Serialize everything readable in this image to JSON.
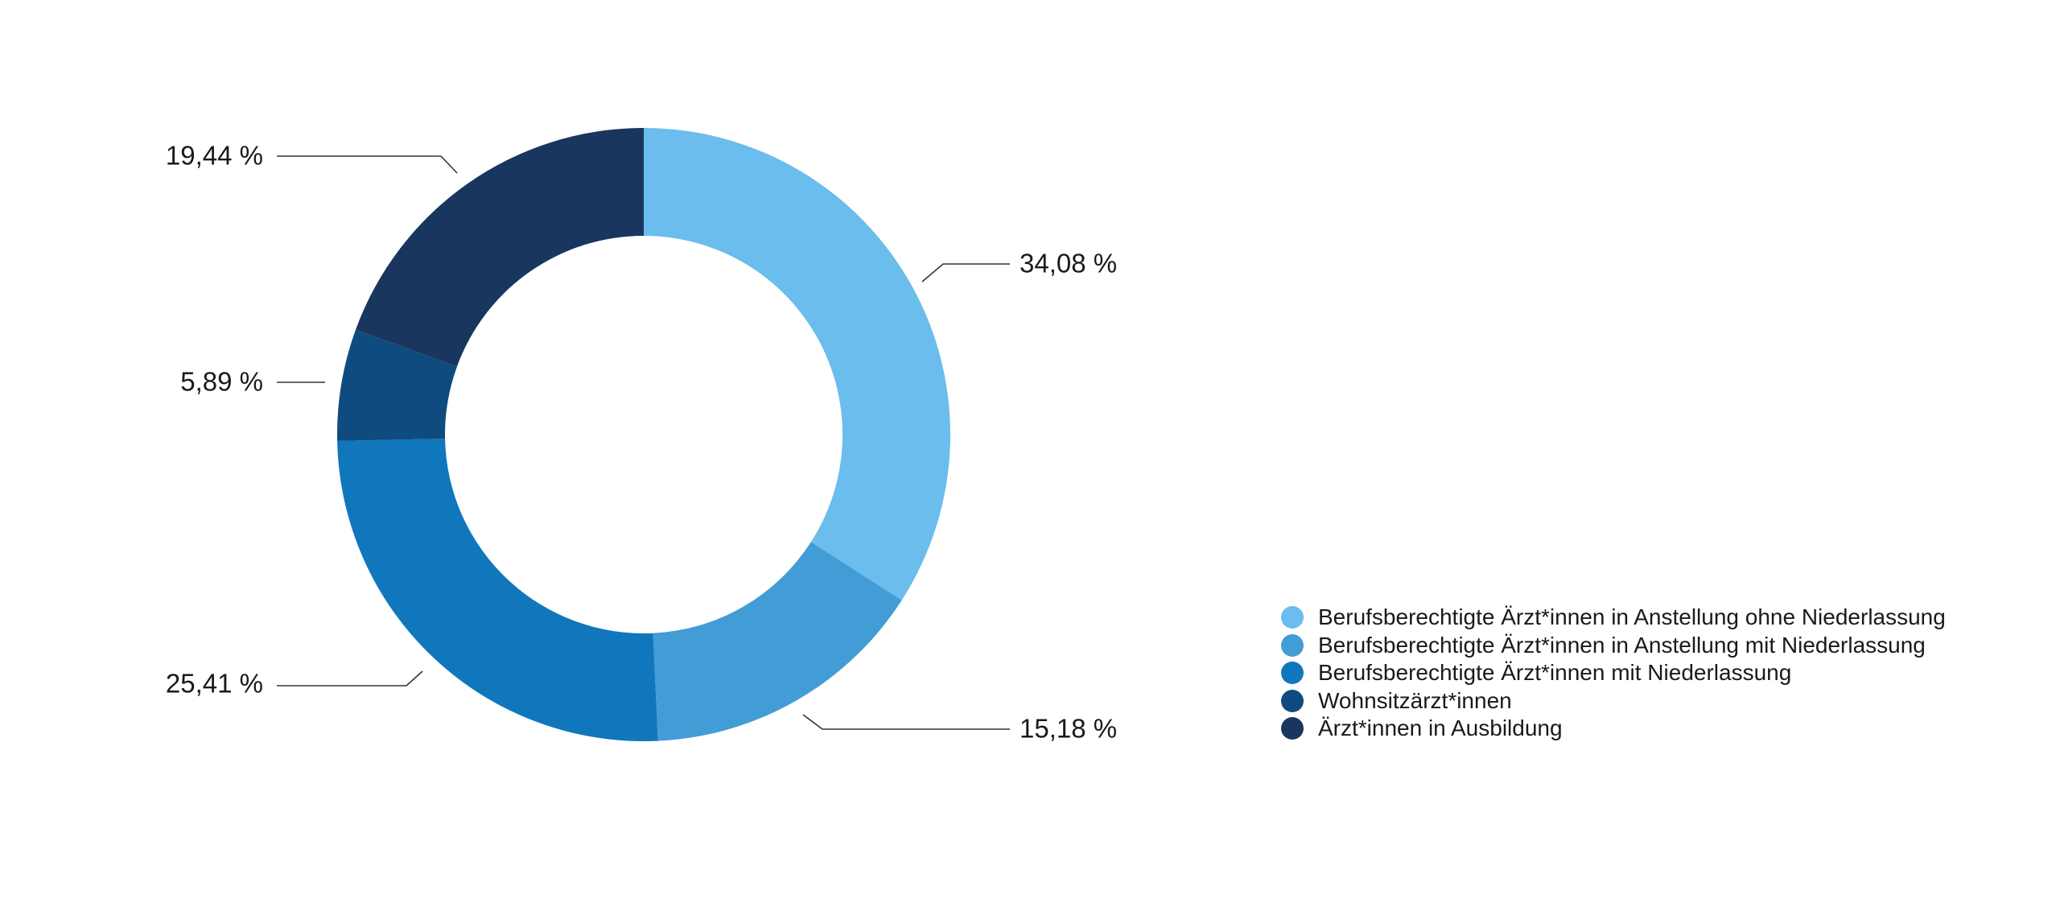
{
  "chart_data": {
    "type": "pie",
    "variant": "donut",
    "title": "",
    "slices": [
      {
        "name": "Berufsberechtigte Ärzt*innen in Anstellung ohne Niederlassung",
        "value": 34.08,
        "label": "34,08 %",
        "color": "#6ABDEC"
      },
      {
        "name": "Berufsberechtigte Ärzt*innen in Anstellung mit Niederlassung",
        "value": 15.18,
        "label": "15,18 %",
        "color": "#429CD6"
      },
      {
        "name": "Berufsberechtigte Ärzt*innen mit Niederlassung",
        "value": 25.41,
        "label": "25,41 %",
        "color": "#1077BC"
      },
      {
        "name": "Wohnsitzärzt*innen",
        "value": 5.89,
        "label": "5,89 %",
        "color": "#0F4B7E"
      },
      {
        "name": "Ärzt*innen in Ausbildung",
        "value": 19.44,
        "label": "19,44 %",
        "color": "#18365E"
      }
    ],
    "start_angle_deg": 0,
    "direction": "clockwise",
    "legend_position": "right"
  }
}
